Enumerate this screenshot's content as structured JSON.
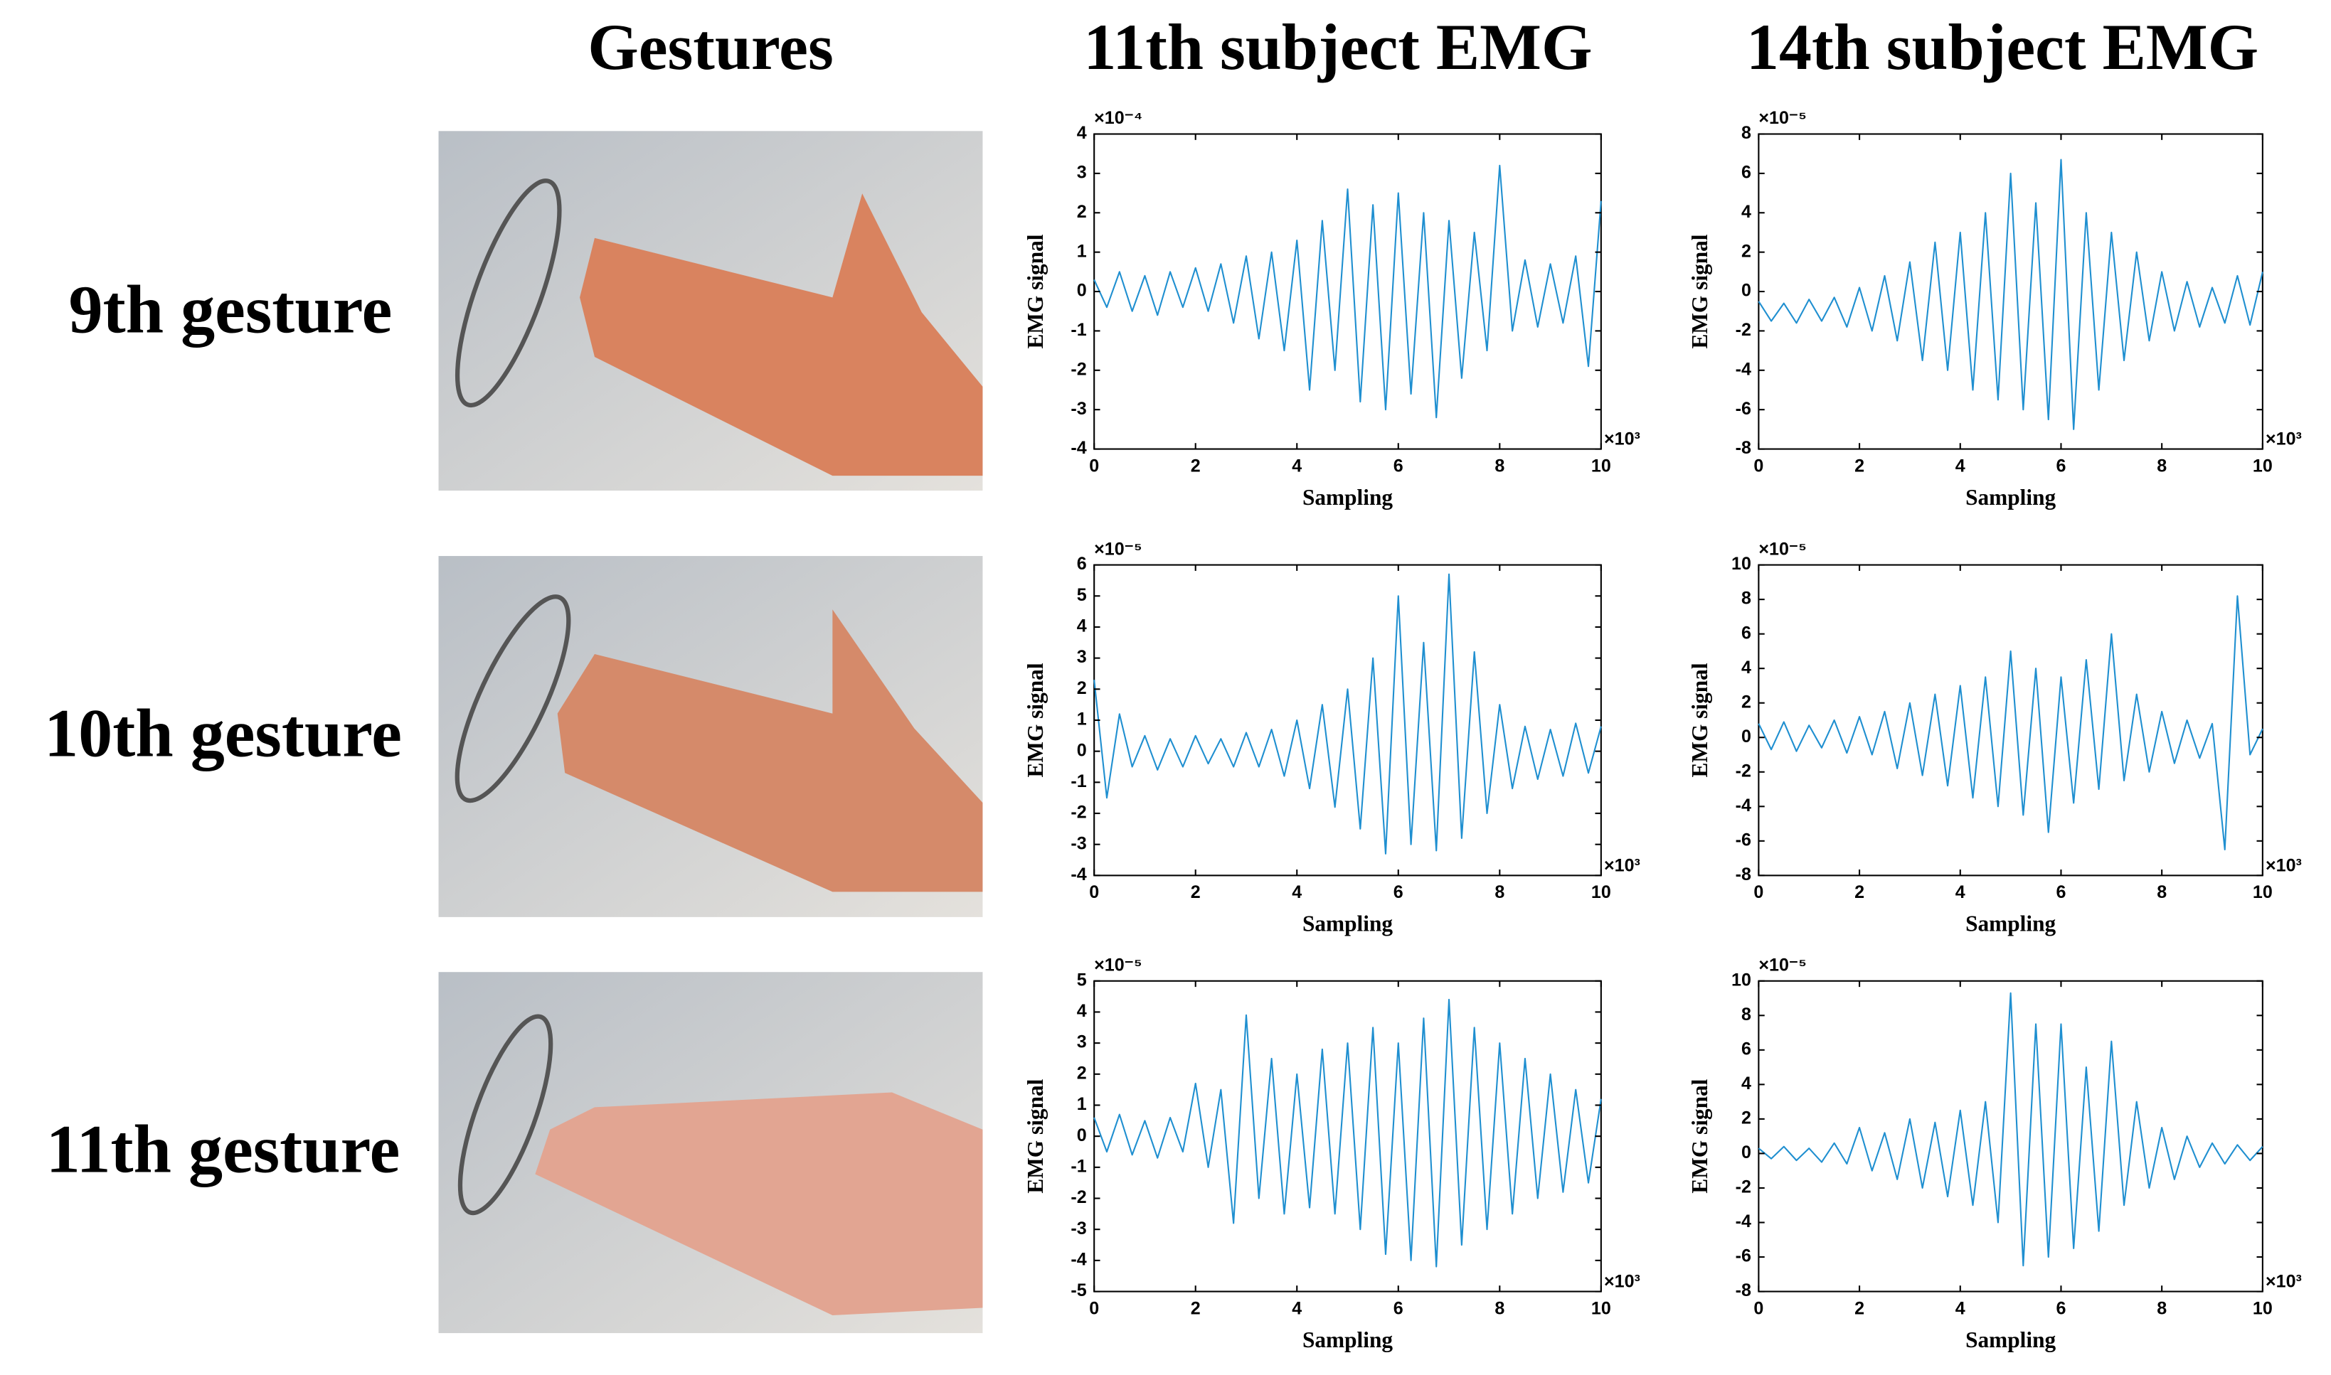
{
  "headers": [
    "Gestures",
    "11th subject EMG",
    "14th subject EMG"
  ],
  "row_labels": [
    "9th gesture",
    "10th gesture",
    "11th gesture"
  ],
  "chart_data": [
    {
      "type": "line",
      "x_label": "Sampling",
      "y_label": "EMG signal",
      "y_exponent": "×10⁻⁴",
      "x_exponent": "×10³",
      "color": "#1f8fd0",
      "xlim": [
        0,
        10
      ],
      "xticks": [
        0,
        2,
        4,
        6,
        8,
        10
      ],
      "ylim": [
        -4,
        4
      ],
      "yticks": [
        -4,
        -3,
        -2,
        -1,
        0,
        1,
        2,
        3,
        4
      ],
      "x": [
        0,
        0.25,
        0.5,
        0.75,
        1,
        1.25,
        1.5,
        1.75,
        2,
        2.25,
        2.5,
        2.75,
        3,
        3.25,
        3.5,
        3.75,
        4,
        4.25,
        4.5,
        4.75,
        5,
        5.25,
        5.5,
        5.75,
        6,
        6.25,
        6.5,
        6.75,
        7,
        7.25,
        7.5,
        7.75,
        8,
        8.25,
        8.5,
        8.75,
        9,
        9.25,
        9.5,
        9.75,
        10
      ],
      "values": [
        0.3,
        -0.4,
        0.5,
        -0.5,
        0.4,
        -0.6,
        0.5,
        -0.4,
        0.6,
        -0.5,
        0.7,
        -0.8,
        0.9,
        -1.2,
        1.0,
        -1.5,
        1.3,
        -2.5,
        1.8,
        -2.0,
        2.6,
        -2.8,
        2.2,
        -3.0,
        2.5,
        -2.6,
        2.0,
        -3.2,
        1.8,
        -2.2,
        1.5,
        -1.5,
        3.2,
        -1.0,
        0.8,
        -0.9,
        0.7,
        -0.8,
        0.9,
        -1.9,
        2.3
      ]
    },
    {
      "type": "line",
      "x_label": "Sampling",
      "y_label": "EMG signal",
      "y_exponent": "×10⁻⁵",
      "x_exponent": "×10³",
      "color": "#1f8fd0",
      "xlim": [
        0,
        10
      ],
      "xticks": [
        0,
        2,
        4,
        6,
        8,
        10
      ],
      "ylim": [
        -8,
        8
      ],
      "yticks": [
        -8,
        -6,
        -4,
        -2,
        0,
        2,
        4,
        6,
        8
      ],
      "x": [
        0,
        0.25,
        0.5,
        0.75,
        1,
        1.25,
        1.5,
        1.75,
        2,
        2.25,
        2.5,
        2.75,
        3,
        3.25,
        3.5,
        3.75,
        4,
        4.25,
        4.5,
        4.75,
        5,
        5.25,
        5.5,
        5.75,
        6,
        6.25,
        6.5,
        6.75,
        7,
        7.25,
        7.5,
        7.75,
        8,
        8.25,
        8.5,
        8.75,
        9,
        9.25,
        9.5,
        9.75,
        10
      ],
      "values": [
        -0.5,
        -1.5,
        -0.6,
        -1.6,
        -0.4,
        -1.5,
        -0.3,
        -1.8,
        0.2,
        -2.0,
        0.8,
        -2.5,
        1.5,
        -3.5,
        2.5,
        -4.0,
        3.0,
        -5.0,
        4.0,
        -5.5,
        6.0,
        -6.0,
        4.5,
        -6.5,
        6.7,
        -7.0,
        4.0,
        -5.0,
        3.0,
        -3.5,
        2.0,
        -2.5,
        1.0,
        -2.0,
        0.5,
        -1.8,
        0.2,
        -1.6,
        0.8,
        -1.7,
        1.0
      ]
    },
    {
      "type": "line",
      "x_label": "Sampling",
      "y_label": "EMG signal",
      "y_exponent": "×10⁻⁵",
      "x_exponent": "×10³",
      "color": "#1f8fd0",
      "xlim": [
        0,
        10
      ],
      "xticks": [
        0,
        2,
        4,
        6,
        8,
        10
      ],
      "ylim": [
        -4,
        6
      ],
      "yticks": [
        -4,
        -3,
        -2,
        -1,
        0,
        1,
        2,
        3,
        4,
        5,
        6
      ],
      "x": [
        0,
        0.25,
        0.5,
        0.75,
        1,
        1.25,
        1.5,
        1.75,
        2,
        2.25,
        2.5,
        2.75,
        3,
        3.25,
        3.5,
        3.75,
        4,
        4.25,
        4.5,
        4.75,
        5,
        5.25,
        5.5,
        5.75,
        6,
        6.25,
        6.5,
        6.75,
        7,
        7.25,
        7.5,
        7.75,
        8,
        8.25,
        8.5,
        8.75,
        9,
        9.25,
        9.5,
        9.75,
        10
      ],
      "values": [
        2.3,
        -1.5,
        1.2,
        -0.5,
        0.5,
        -0.6,
        0.4,
        -0.5,
        0.5,
        -0.4,
        0.4,
        -0.5,
        0.6,
        -0.5,
        0.7,
        -0.8,
        1.0,
        -1.2,
        1.5,
        -1.8,
        2.0,
        -2.5,
        3.0,
        -3.3,
        5.0,
        -3.0,
        3.5,
        -3.2,
        5.7,
        -2.8,
        3.2,
        -2.0,
        1.5,
        -1.2,
        0.8,
        -0.9,
        0.7,
        -0.8,
        0.9,
        -0.7,
        0.8
      ]
    },
    {
      "type": "line",
      "x_label": "Sampling",
      "y_label": "EMG signal",
      "y_exponent": "×10⁻⁵",
      "x_exponent": "×10³",
      "color": "#1f8fd0",
      "xlim": [
        0,
        10
      ],
      "xticks": [
        0,
        2,
        4,
        6,
        8,
        10
      ],
      "ylim": [
        -8,
        10
      ],
      "yticks": [
        -8,
        -6,
        -4,
        -2,
        0,
        2,
        4,
        6,
        8,
        10
      ],
      "x": [
        0,
        0.25,
        0.5,
        0.75,
        1,
        1.25,
        1.5,
        1.75,
        2,
        2.25,
        2.5,
        2.75,
        3,
        3.25,
        3.5,
        3.75,
        4,
        4.25,
        4.5,
        4.75,
        5,
        5.25,
        5.5,
        5.75,
        6,
        6.25,
        6.5,
        6.75,
        7,
        7.25,
        7.5,
        7.75,
        8,
        8.25,
        8.5,
        8.75,
        9,
        9.25,
        9.5,
        9.75,
        10
      ],
      "values": [
        0.8,
        -0.7,
        0.9,
        -0.8,
        0.7,
        -0.6,
        1.0,
        -0.9,
        1.2,
        -1.0,
        1.5,
        -1.8,
        2.0,
        -2.2,
        2.5,
        -2.8,
        3.0,
        -3.5,
        3.5,
        -4.0,
        5.0,
        -4.5,
        4.0,
        -5.5,
        3.5,
        -3.8,
        4.5,
        -3.0,
        6.0,
        -2.5,
        2.5,
        -2.0,
        1.5,
        -1.5,
        1.0,
        -1.2,
        0.8,
        -6.5,
        8.2,
        -1.0,
        0.5
      ]
    },
    {
      "type": "line",
      "x_label": "Sampling",
      "y_label": "EMG signal",
      "y_exponent": "×10⁻⁵",
      "x_exponent": "×10³",
      "color": "#1f8fd0",
      "xlim": [
        0,
        10
      ],
      "xticks": [
        0,
        2,
        4,
        6,
        8,
        10
      ],
      "ylim": [
        -5,
        5
      ],
      "yticks": [
        -5,
        -4,
        -3,
        -2,
        -1,
        0,
        1,
        2,
        3,
        4,
        5
      ],
      "x": [
        0,
        0.25,
        0.5,
        0.75,
        1,
        1.25,
        1.5,
        1.75,
        2,
        2.25,
        2.5,
        2.75,
        3,
        3.25,
        3.5,
        3.75,
        4,
        4.25,
        4.5,
        4.75,
        5,
        5.25,
        5.5,
        5.75,
        6,
        6.25,
        6.5,
        6.75,
        7,
        7.25,
        7.5,
        7.75,
        8,
        8.25,
        8.5,
        8.75,
        9,
        9.25,
        9.5,
        9.75,
        10
      ],
      "values": [
        0.6,
        -0.5,
        0.7,
        -0.6,
        0.5,
        -0.7,
        0.6,
        -0.5,
        1.7,
        -1.0,
        1.5,
        -2.8,
        3.9,
        -2.0,
        2.5,
        -2.5,
        2.0,
        -2.3,
        2.8,
        -2.5,
        3.0,
        -3.0,
        3.5,
        -3.8,
        3.0,
        -4.0,
        3.8,
        -4.2,
        4.4,
        -3.5,
        3.5,
        -3.0,
        3.0,
        -2.5,
        2.5,
        -2.0,
        2.0,
        -1.8,
        1.5,
        -1.5,
        1.2
      ]
    },
    {
      "type": "line",
      "x_label": "Sampling",
      "y_label": "EMG signal",
      "y_exponent": "×10⁻⁵",
      "x_exponent": "×10³",
      "color": "#1f8fd0",
      "xlim": [
        0,
        10
      ],
      "xticks": [
        0,
        2,
        4,
        6,
        8,
        10
      ],
      "ylim": [
        -8,
        10
      ],
      "yticks": [
        -8,
        -6,
        -4,
        -2,
        0,
        2,
        4,
        6,
        8,
        10
      ],
      "x": [
        0,
        0.25,
        0.5,
        0.75,
        1,
        1.25,
        1.5,
        1.75,
        2,
        2.25,
        2.5,
        2.75,
        3,
        3.25,
        3.5,
        3.75,
        4,
        4.25,
        4.5,
        4.75,
        5,
        5.25,
        5.5,
        5.75,
        6,
        6.25,
        6.5,
        6.75,
        7,
        7.25,
        7.5,
        7.75,
        8,
        8.25,
        8.5,
        8.75,
        9,
        9.25,
        9.5,
        9.75,
        10
      ],
      "values": [
        0.3,
        -0.3,
        0.4,
        -0.4,
        0.3,
        -0.5,
        0.6,
        -0.6,
        1.5,
        -1.0,
        1.2,
        -1.5,
        2.0,
        -2.0,
        1.8,
        -2.5,
        2.5,
        -3.0,
        3.0,
        -4.0,
        9.3,
        -6.5,
        7.5,
        -6.0,
        7.5,
        -5.5,
        5.0,
        -4.5,
        6.5,
        -3.0,
        3.0,
        -2.0,
        1.5,
        -1.5,
        1.0,
        -0.8,
        0.6,
        -0.6,
        0.5,
        -0.4,
        0.4
      ]
    }
  ]
}
